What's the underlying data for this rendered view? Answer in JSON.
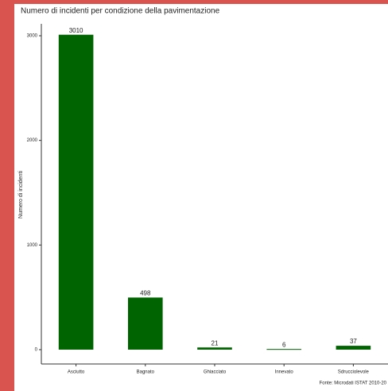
{
  "chart_data": {
    "type": "bar",
    "title": "Numero di incidenti per condizione della pavimentazione",
    "y_label": "Numero di incidenti",
    "caption": "Fonte: Microdati ISTAT 2010-20",
    "categories": [
      "Asciutto",
      "Bagnato",
      "Ghiacciato",
      "Innevato",
      "Sdrucciolevole"
    ],
    "values": [
      3010,
      498,
      21,
      6,
      37
    ],
    "color": "#006400",
    "ylim": [
      -137,
      3114
    ],
    "yticks": [
      0,
      1000,
      2000,
      3000
    ],
    "grid": false
  }
}
